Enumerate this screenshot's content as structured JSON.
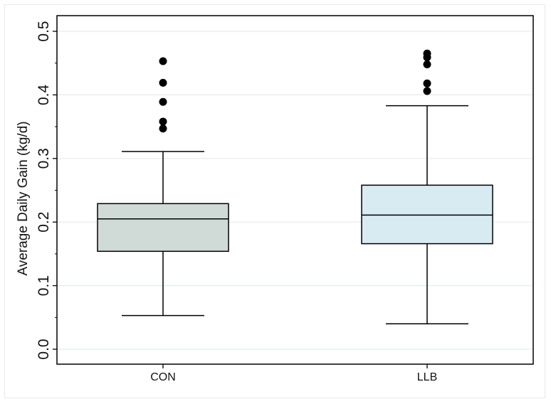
{
  "chart_data": {
    "type": "box",
    "title": "",
    "xlabel": "",
    "ylabel": "Average Daily Gain (kg/d)",
    "ylim": [
      0.0,
      0.5
    ],
    "yticks": [
      "0.0",
      "0.1",
      "0.2",
      "0.3",
      "0.4",
      "0.5"
    ],
    "grid": true,
    "categories": [
      "CON",
      "LLB"
    ],
    "boxes": [
      {
        "category": "CON",
        "whisker_low": 0.053,
        "q1": 0.154,
        "median": 0.205,
        "q3": 0.229,
        "whisker_high": 0.311,
        "outliers": [
          0.347,
          0.358,
          0.389,
          0.419,
          0.453
        ],
        "fill": "#d0dbd7"
      },
      {
        "category": "LLB",
        "whisker_low": 0.04,
        "q1": 0.166,
        "median": 0.211,
        "q3": 0.258,
        "whisker_high": 0.383,
        "outliers": [
          0.406,
          0.418,
          0.448,
          0.459,
          0.465
        ],
        "fill": "#d8eaf2"
      }
    ]
  }
}
